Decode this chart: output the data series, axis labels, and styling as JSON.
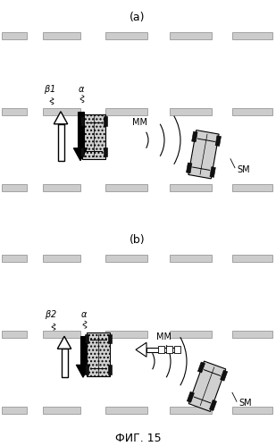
{
  "title": "ФИГ. 15",
  "panel_a_label": "(a)",
  "panel_b_label": "(b)",
  "bg_color": "#ffffff",
  "fig_width": 3.09,
  "fig_height": 4.99,
  "dpi": 100
}
